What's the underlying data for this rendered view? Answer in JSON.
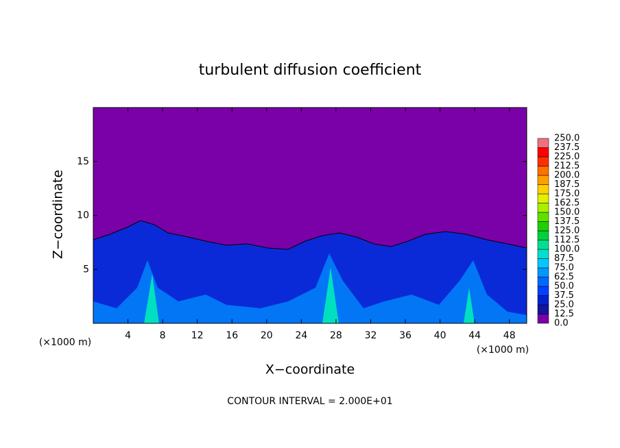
{
  "chart_data": {
    "type": "contour",
    "title": "turbulent diffusion coefficient",
    "xlabel": "X−coordinate",
    "ylabel": "Z−coordinate",
    "x_unit_label": "(×1000 m)",
    "footer": "CONTOUR INTERVAL = 2.000E+01",
    "xlim": [
      0,
      50
    ],
    "ylim": [
      0,
      20
    ],
    "xticks": [
      4,
      8,
      12,
      16,
      20,
      24,
      28,
      32,
      36,
      40,
      44,
      48
    ],
    "yticks": [
      5,
      10,
      15
    ],
    "colorbar": {
      "levels": [
        {
          "value": 0,
          "label": "0.0"
        },
        {
          "value": 12.5,
          "label": "12.5"
        },
        {
          "value": 25,
          "label": "25.0"
        },
        {
          "value": 37.5,
          "label": "37.5"
        },
        {
          "value": 50,
          "label": "50.0"
        },
        {
          "value": 62.5,
          "label": "62.5"
        },
        {
          "value": 75,
          "label": "75.0"
        },
        {
          "value": 87.5,
          "label": "87.5"
        },
        {
          "value": 100,
          "label": "100.0"
        },
        {
          "value": 112.5,
          "label": "112.5"
        },
        {
          "value": 125,
          "label": "125.0"
        },
        {
          "value": 137.5,
          "label": "137.5"
        },
        {
          "value": 150,
          "label": "150.0"
        },
        {
          "value": 162.5,
          "label": "162.5"
        },
        {
          "value": 175,
          "label": "175.0"
        },
        {
          "value": 187.5,
          "label": "187.5"
        },
        {
          "value": 200,
          "label": "200.0"
        },
        {
          "value": 212.5,
          "label": "212.5"
        },
        {
          "value": 225,
          "label": "225.0"
        },
        {
          "value": 237.5,
          "label": "237.5"
        },
        {
          "value": 250,
          "label": "250.0"
        }
      ],
      "colors": [
        "#7a00a8",
        "#1414a0",
        "#0022cc",
        "#0040ff",
        "#0068ff",
        "#0098ff",
        "#00c8ff",
        "#00e0d0",
        "#00e090",
        "#00d040",
        "#20d000",
        "#60e000",
        "#a8f000",
        "#e0f000",
        "#ffd000",
        "#ffa000",
        "#ff7000",
        "#ff3000",
        "#ff0000",
        "#f07080"
      ]
    }
  }
}
